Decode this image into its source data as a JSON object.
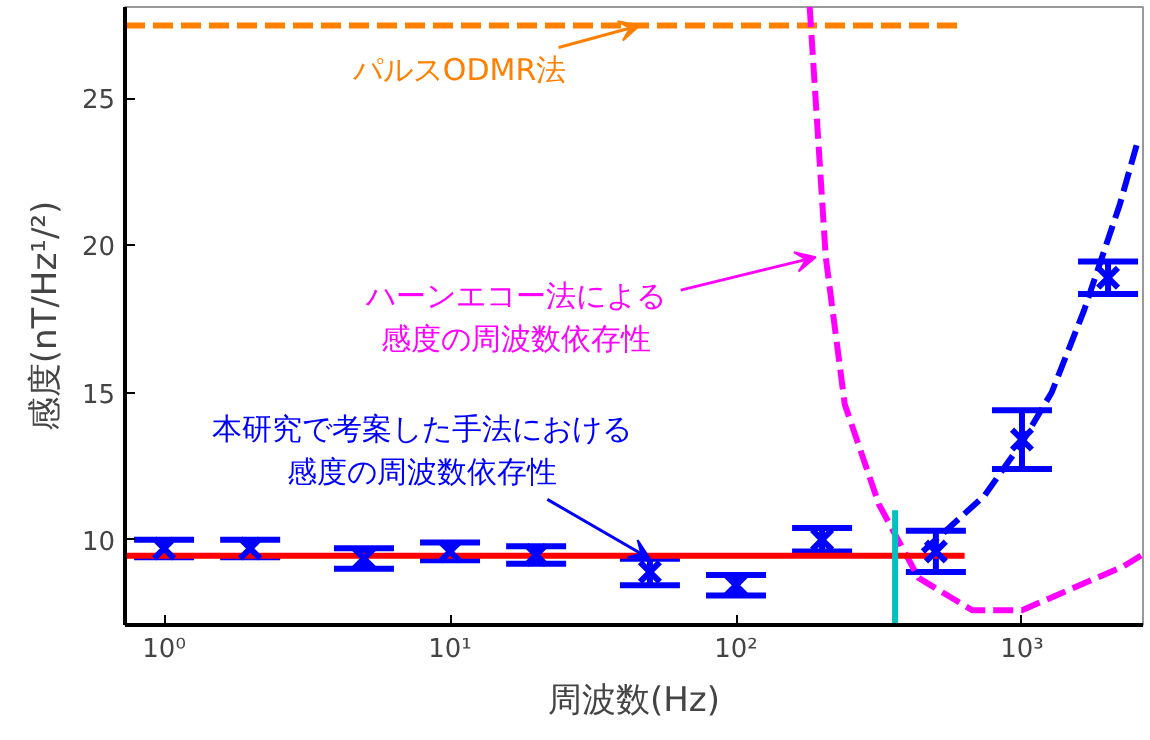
{
  "chart_data": {
    "type": "scatter",
    "xlabel": "周波数(Hz)",
    "ylabel": "感度(nT/Hz¹/²)",
    "log": "x",
    "xlim": [
      0.73,
      2650
    ],
    "ylim": [
      7.1,
      28.1
    ],
    "xticks": [
      {
        "value": 1,
        "label": "10⁰"
      },
      {
        "value": 10,
        "label": "10¹"
      },
      {
        "value": 100,
        "label": "10²"
      },
      {
        "value": 1000,
        "label": "10³"
      }
    ],
    "yticks": [
      10,
      15,
      20,
      25
    ],
    "grid": false,
    "series": [
      {
        "type": "line",
        "color": "#ff8000",
        "line_style": "dashed",
        "marker": "none",
        "x": [
          0.73,
          630
        ],
        "values": [
          27.47,
          27.47
        ]
      },
      {
        "type": "line",
        "color": "#ff00ff",
        "line_style": "dashed",
        "marker": "none",
        "x": [
          181,
          206,
          240,
          316,
          435,
          670,
          1000,
          2270,
          2650
        ],
        "values": [
          28.1,
          19.6,
          14.6,
          11.2,
          8.7,
          7.6,
          7.6,
          9.1,
          9.5
        ]
      },
      {
        "type": "line",
        "color": "#ff0000",
        "line_style": "solid",
        "marker": "none",
        "x": [
          0.73,
          630
        ],
        "values": [
          9.45,
          9.45
        ]
      },
      {
        "type": "line",
        "color": "#0000ff",
        "line_style": "dashed",
        "marker": "none",
        "x": [
          450,
          570,
          740,
          1000,
          1270,
          1650,
          2200,
          2550
        ],
        "values": [
          9.6,
          10.5,
          11.5,
          13.3,
          15.0,
          17.8,
          21.4,
          23.6
        ]
      },
      {
        "color": "#0000ff",
        "marker": "cross",
        "x": [
          1,
          2,
          5,
          10,
          20,
          50,
          100,
          200,
          500,
          1000,
          2000
        ],
        "values": [
          9.7,
          9.7,
          9.36,
          9.6,
          9.48,
          8.9,
          8.45,
          10.0,
          9.6,
          13.4,
          18.9
        ],
        "errors": [
          0.3,
          0.3,
          0.35,
          0.3,
          0.3,
          0.45,
          0.35,
          0.4,
          0.7,
          1.0,
          0.55
        ]
      },
      {
        "type": "line",
        "color": "#00c0c0",
        "line_style": "solid",
        "marker": "none",
        "x": [
          360,
          360
        ],
        "values": [
          7.1,
          11.0
        ]
      }
    ],
    "annotations": [
      {
        "text": "パルスODMR法",
        "x": 46,
        "y": 27.47
      },
      {
        "text": "ハーンエコー法による感度の周波数依存性",
        "x": 190,
        "y": 19.6
      },
      {
        "text": "本研究で考案した手法における感度の周波数依存性",
        "x": 50,
        "y": 9.35
      }
    ]
  }
}
